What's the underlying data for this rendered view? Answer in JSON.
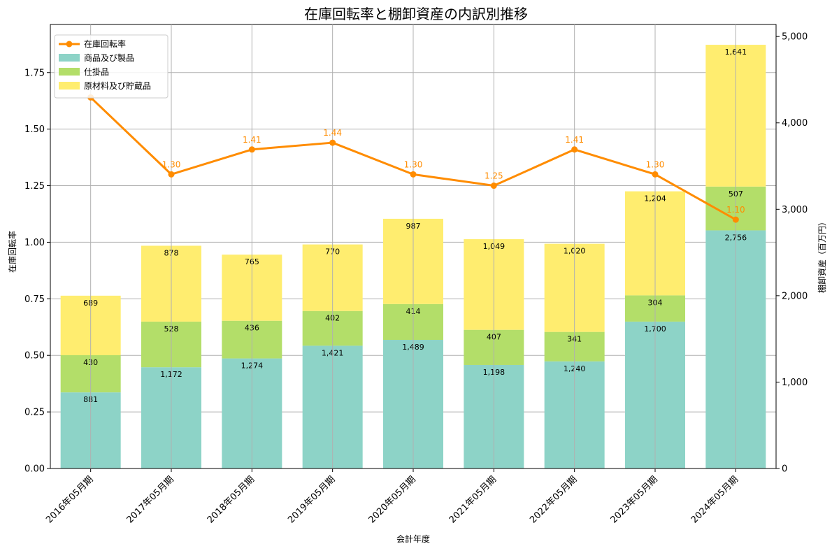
{
  "chart_data": {
    "type": "bar",
    "title": "在庫回転率と棚卸資産の内訳別推移",
    "xlabel": "会計年度",
    "ylabel_left": "在庫回転率",
    "ylabel_right": "棚卸資産（百万円）",
    "categories": [
      "2016年05月期",
      "2017年05月期",
      "2018年05月期",
      "2019年05月期",
      "2020年05月期",
      "2021年05月期",
      "2022年05月期",
      "2023年05月期",
      "2024年05月期"
    ],
    "bar_series": [
      {
        "name": "商品及び製品",
        "color": "#8dd3c7",
        "values": [
          881,
          1172,
          1274,
          1421,
          1489,
          1198,
          1240,
          1700,
          2756
        ]
      },
      {
        "name": "仕掛品",
        "color": "#b3de69",
        "values": [
          430,
          528,
          436,
          402,
          414,
          407,
          341,
          304,
          507
        ]
      },
      {
        "name": "原材料及び貯蔵品",
        "color": "#ffed6f",
        "values": [
          689,
          878,
          765,
          770,
          987,
          1049,
          1020,
          1204,
          1641
        ]
      }
    ],
    "line_series": {
      "name": "在庫回転率",
      "color": "#ff8c00",
      "values": [
        1.64,
        1.3,
        1.41,
        1.44,
        1.3,
        1.25,
        1.41,
        1.3,
        1.1
      ],
      "labels": [
        null,
        "1.30",
        "1.41",
        "1.44",
        "1.30",
        "1.25",
        "1.41",
        "1.30",
        "1.10"
      ]
    },
    "ylim_left": [
      0,
      1.9625
    ],
    "ylim_right": [
      0,
      5139
    ],
    "yticks_left": [
      "0.00",
      "0.25",
      "0.50",
      "0.75",
      "1.00",
      "1.25",
      "1.50",
      "1.75"
    ],
    "yticks_right": [
      "0",
      "1,000",
      "2,000",
      "3,000",
      "4,000",
      "5,000"
    ],
    "grid": true,
    "legend_position": "top-left"
  }
}
